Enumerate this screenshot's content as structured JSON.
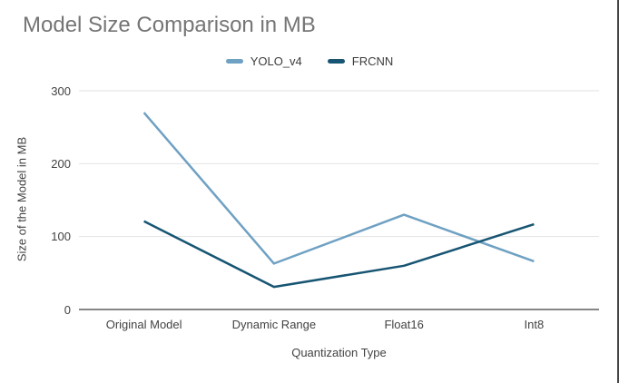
{
  "chart_data": {
    "type": "line",
    "title": "Model Size Comparison in MB",
    "xlabel": "Quantization Type",
    "ylabel": "Size of the Model in MB",
    "categories": [
      "Original Model",
      "Dynamic Range",
      "Float16",
      "Int8"
    ],
    "series": [
      {
        "name": "YOLO_v4",
        "color": "#6FA1C3",
        "values": [
          270,
          63,
          130,
          66
        ]
      },
      {
        "name": "FRCNN",
        "color": "#175573",
        "values": [
          121,
          31,
          60,
          117
        ]
      }
    ],
    "yticks": [
      0,
      100,
      200,
      300
    ],
    "ylim": [
      0,
      300
    ],
    "grid": true,
    "legend_position": "top",
    "gridline_color": "#e2e2e2",
    "baseline_color": "#5f5f5f"
  }
}
